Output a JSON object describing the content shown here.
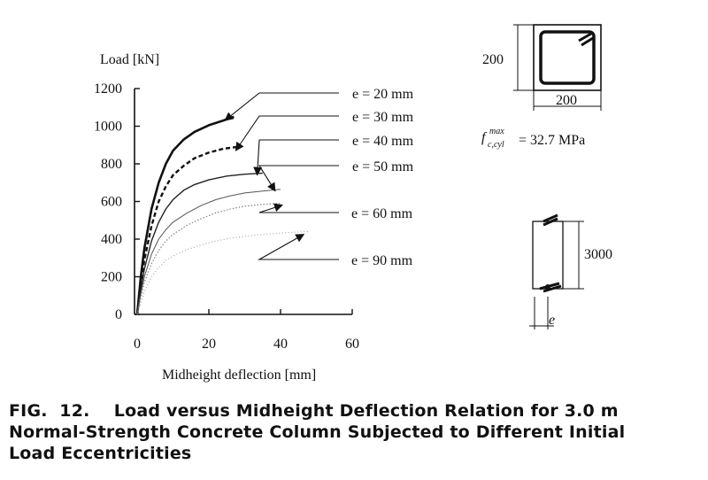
{
  "chart_data": {
    "type": "line",
    "ylabel": "Load [kN]",
    "xlabel": "Midheight deflection [mm]",
    "xlim": [
      0,
      60
    ],
    "ylim": [
      0,
      1200
    ],
    "xticks": [
      "0",
      "20",
      "40",
      "60"
    ],
    "yticks": [
      "0",
      "200",
      "400",
      "600",
      "800",
      "1000",
      "1200"
    ],
    "grid": false,
    "series": [
      {
        "name": "e = 20 mm",
        "style": "solid-heavy",
        "x": [
          0,
          1,
          2,
          4,
          6,
          8,
          10,
          13,
          16,
          20,
          24,
          27
        ],
        "y": [
          0,
          200,
          350,
          560,
          700,
          800,
          870,
          930,
          970,
          1005,
          1030,
          1050
        ]
      },
      {
        "name": "e = 30 mm",
        "style": "dashed-heavy",
        "x": [
          0,
          1,
          2,
          4,
          6,
          8,
          10,
          13,
          16,
          20,
          24,
          28
        ],
        "y": [
          0,
          160,
          290,
          470,
          600,
          680,
          740,
          790,
          830,
          860,
          880,
          890
        ]
      },
      {
        "name": "e = 40 mm",
        "style": "solid",
        "x": [
          0,
          1,
          2,
          4,
          6,
          8,
          10,
          13,
          16,
          20,
          25,
          30,
          35
        ],
        "y": [
          0,
          130,
          240,
          390,
          490,
          560,
          610,
          660,
          690,
          715,
          735,
          745,
          750
        ]
      },
      {
        "name": "e = 50 mm",
        "style": "solid-thin",
        "x": [
          0,
          1,
          2,
          4,
          6,
          8,
          10,
          14,
          18,
          22,
          26,
          30,
          35,
          40
        ],
        "y": [
          0,
          110,
          200,
          320,
          400,
          450,
          490,
          540,
          580,
          610,
          630,
          645,
          655,
          665
        ]
      },
      {
        "name": "e = 60 mm",
        "style": "dotted",
        "x": [
          0,
          1,
          2,
          4,
          6,
          8,
          10,
          14,
          18,
          22,
          26,
          30,
          35,
          40
        ],
        "y": [
          0,
          90,
          170,
          270,
          340,
          390,
          425,
          475,
          510,
          540,
          560,
          575,
          585,
          590
        ]
      },
      {
        "name": "e = 90 mm",
        "style": "dotted-light",
        "x": [
          0,
          2,
          4,
          6,
          8,
          10,
          14,
          18,
          22,
          26,
          30,
          35,
          40,
          45,
          48
        ],
        "y": [
          0,
          120,
          200,
          250,
          285,
          310,
          345,
          370,
          390,
          405,
          415,
          425,
          432,
          438,
          440
        ]
      }
    ],
    "annotations": [
      {
        "label": "e = 20 mm",
        "at_x": 24,
        "at_y": 1040
      },
      {
        "label": "e = 30 mm",
        "at_x": 27,
        "at_y": 880
      },
      {
        "label": "e = 40 mm",
        "at_x": 33,
        "at_y": 750
      },
      {
        "label": "e = 50 mm",
        "at_x": 38,
        "at_y": 665
      },
      {
        "label": "e = 60 mm",
        "at_x": 40,
        "at_y": 590
      },
      {
        "label": "e = 90 mm",
        "at_x": 46,
        "at_y": 435
      }
    ]
  },
  "section": {
    "dim_height": "200",
    "dim_width": "200",
    "strength_value": "= 32.7 MPa",
    "strength_f": "f",
    "strength_sub": "c,cyl",
    "strength_sup": "max"
  },
  "column": {
    "length": "3000",
    "ecc_label": "e"
  },
  "caption": {
    "line1": "FIG.  12.    Load versus Midheight Deflection Relation for 3.0 m",
    "line2": "Normal-Strength Concrete Column Subjected to Different Initial",
    "line3": "Load Eccentricities"
  }
}
